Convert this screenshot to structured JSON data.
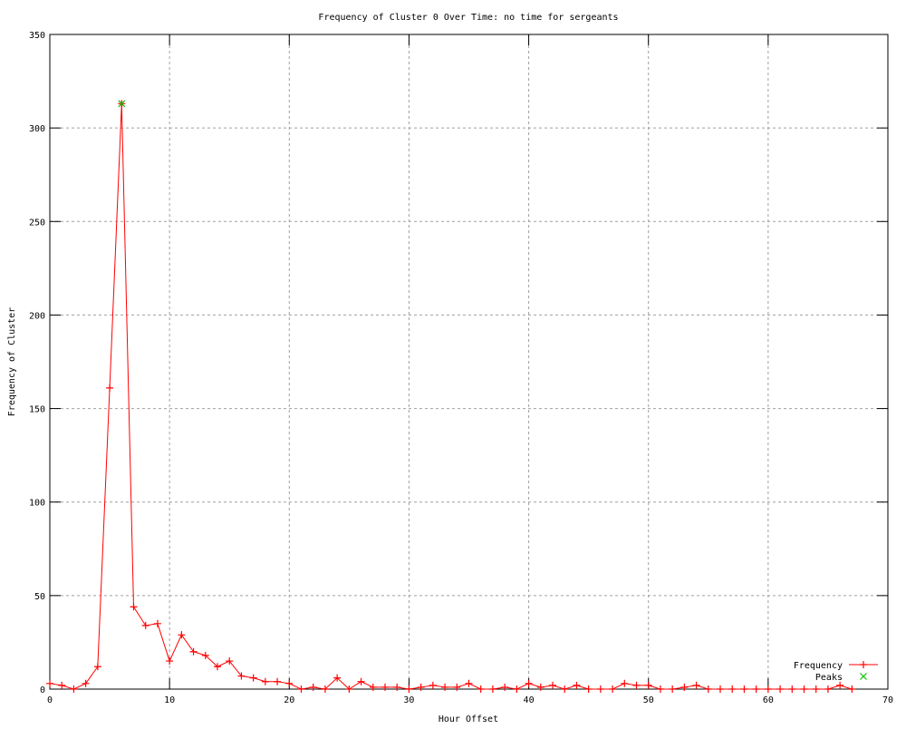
{
  "chart_data": {
    "type": "line",
    "title": "Frequency of Cluster 0 Over Time: no time for sergeants",
    "xlabel": "Hour Offset",
    "ylabel": "Frequency of Cluster",
    "xlim": [
      0,
      70
    ],
    "ylim": [
      0,
      350
    ],
    "xticks": [
      0,
      10,
      20,
      30,
      40,
      50,
      60,
      70
    ],
    "yticks": [
      0,
      50,
      100,
      150,
      200,
      250,
      300,
      350
    ],
    "grid": true,
    "legend_placement": "bottom-right",
    "series": [
      {
        "name": "Frequency",
        "color": "#ff0000",
        "marker": "plus",
        "x": [
          0,
          1,
          2,
          3,
          4,
          5,
          6,
          7,
          8,
          9,
          10,
          11,
          12,
          13,
          14,
          15,
          16,
          17,
          18,
          19,
          20,
          21,
          22,
          23,
          24,
          25,
          26,
          27,
          28,
          29,
          30,
          31,
          32,
          33,
          34,
          35,
          36,
          37,
          38,
          39,
          40,
          41,
          42,
          43,
          44,
          45,
          46,
          47,
          48,
          49,
          50,
          51,
          52,
          53,
          54,
          55,
          56,
          57,
          58,
          59,
          60,
          61,
          62,
          63,
          64,
          65,
          66,
          67
        ],
        "y": [
          3,
          2,
          0,
          3,
          12,
          161,
          313,
          44,
          34,
          35,
          15,
          29,
          20,
          18,
          12,
          15,
          7,
          6,
          4,
          4,
          3,
          0,
          1,
          0,
          6,
          0,
          4,
          1,
          1,
          1,
          0,
          1,
          2,
          1,
          1,
          3,
          0,
          0,
          1,
          0,
          3,
          1,
          2,
          0,
          2,
          0,
          0,
          0,
          3,
          2,
          2,
          0,
          0,
          1,
          2,
          0,
          0,
          0,
          0,
          0,
          0,
          0,
          0,
          0,
          0,
          0,
          2,
          0
        ]
      },
      {
        "name": "Peaks",
        "color": "#00c000",
        "marker": "cross",
        "x": [
          6
        ],
        "y": [
          313
        ]
      }
    ]
  }
}
